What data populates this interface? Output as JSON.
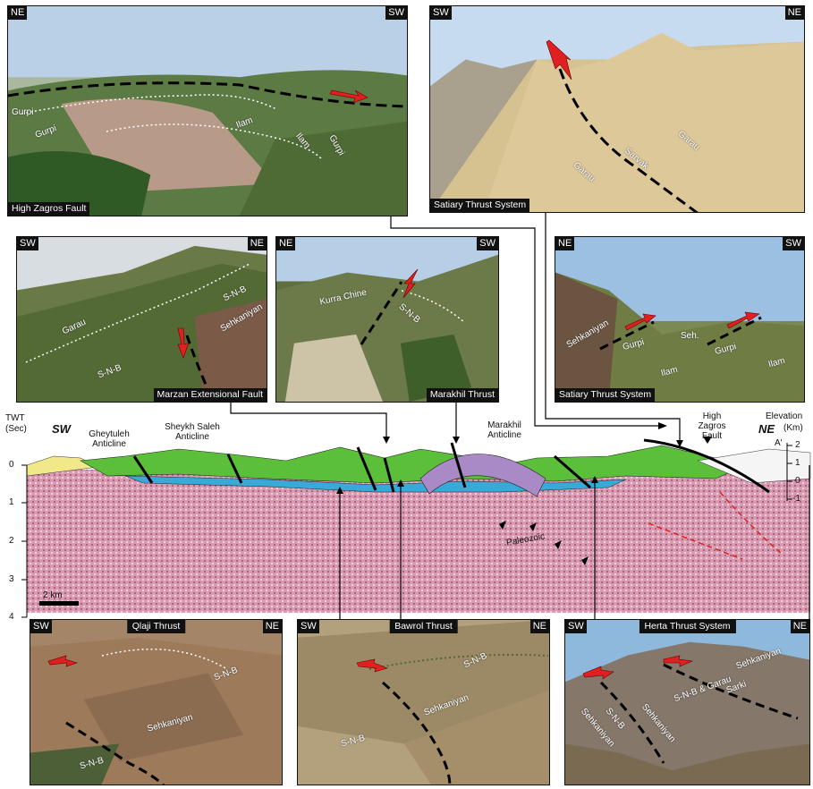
{
  "photos": {
    "p1": {
      "left": "NE",
      "right": "SW",
      "caption": "High Zagros Fault",
      "labels": [
        "Gurpi",
        "Gurpi",
        "Ilam",
        "Ilam",
        "Gurpi"
      ]
    },
    "p2": {
      "left": "SW",
      "right": "NE",
      "caption": "Satiary Thrust System",
      "labels": [
        "Garau",
        "Sarvak",
        "Garau"
      ]
    },
    "p3": {
      "left": "SW",
      "right": "NE",
      "caption": "Marzan Extensional Fault",
      "labels": [
        "Garau",
        "S-N-B",
        "Sehkaniyan",
        "S-N-B"
      ]
    },
    "p4": {
      "left": "NE",
      "right": "SW",
      "caption": "Marakhil Thrust",
      "labels": [
        "Kurra Chine",
        "S-N-B"
      ]
    },
    "p5": {
      "left": "NE",
      "right": "SW",
      "caption": "Satiary Thrust System",
      "labels": [
        "Sehkaniyan",
        "Gurpi",
        "Seh.",
        "Gurpi",
        "Ilam",
        "Ilam"
      ]
    },
    "p6": {
      "left": "SW",
      "right": "NE",
      "caption": "Qlaji Thrust",
      "labels": [
        "S-N-B",
        "Sehkaniyan",
        "S-N-B"
      ]
    },
    "p7": {
      "left": "SW",
      "right": "NE",
      "caption": "Bawrol Thrust",
      "labels": [
        "S-N-B",
        "Sehkaniyan",
        "S-N-B"
      ]
    },
    "p8": {
      "left": "SW",
      "right": "NE",
      "caption": "Herta Thrust System",
      "labels": [
        "Sehkaniyan",
        "S-N-B",
        "Sehkaniyan",
        "S-N-B & Garau",
        "Sarki",
        "Sehkaniyan"
      ]
    }
  },
  "section": {
    "twt_label": "TWT",
    "twt_unit": "(Sec)",
    "sw": "SW",
    "ne": "NE",
    "elev_label": "Elevation",
    "elev_unit": "(Km)",
    "a_prime": "A'",
    "time_ticks": [
      "0",
      "1",
      "2",
      "3",
      "4"
    ],
    "elev_ticks": [
      "2",
      "1",
      "0",
      "-1"
    ],
    "structures": [
      "Gheytuleh Anticline",
      "Sheykh Saleh Anticline",
      "Marakhil Anticline",
      "High Zagros Fault"
    ],
    "paleozoic": "Paleozoic",
    "scale": "2 km"
  },
  "colors": {
    "fault_arrow": "#e02020",
    "seismic": "#c9869b",
    "green_unit": "#5cbf3a",
    "blue_unit": "#39a9d8",
    "purple_unit": "#a98ac7",
    "yellow_unit": "#f1e88a"
  }
}
